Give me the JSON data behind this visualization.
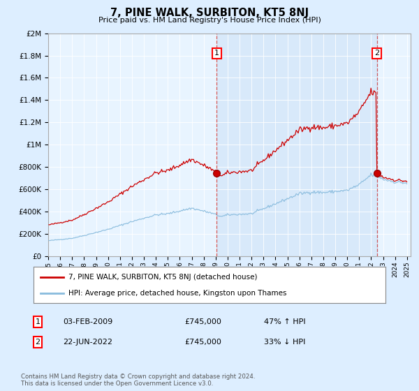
{
  "title": "7, PINE WALK, SURBITON, KT5 8NJ",
  "subtitle": "Price paid vs. HM Land Registry's House Price Index (HPI)",
  "legend_line1": "7, PINE WALK, SURBITON, KT5 8NJ (detached house)",
  "legend_line2": "HPI: Average price, detached house, Kingston upon Thames",
  "sale1_price": 745000,
  "sale2_price": 745000,
  "sale1_year": 2009.083,
  "sale2_year": 2022.47,
  "hpi_line_color": "#88bbdd",
  "price_line_color": "#cc0000",
  "dashed_line_color": "#dd4444",
  "background_color": "#ddeeff",
  "plot_bg_color": "#e8f4ff",
  "shade_color": "#c8dff5",
  "footer": "Contains HM Land Registry data © Crown copyright and database right 2024.\nThis data is licensed under the Open Government Licence v3.0.",
  "ylim_max": 2000000,
  "ytick_values": [
    0,
    200000,
    400000,
    600000,
    800000,
    1000000,
    1200000,
    1400000,
    1600000,
    1800000,
    2000000
  ],
  "ytick_labels": [
    "£0",
    "£200K",
    "£400K",
    "£600K",
    "£800K",
    "£1M",
    "£1.2M",
    "£1.4M",
    "£1.6M",
    "£1.8M",
    "£2M"
  ],
  "xmin": 1995.0,
  "xmax": 2025.3,
  "xtick_years": [
    1995,
    1996,
    1997,
    1998,
    1999,
    2000,
    2001,
    2002,
    2003,
    2004,
    2005,
    2006,
    2007,
    2008,
    2009,
    2010,
    2011,
    2012,
    2013,
    2014,
    2015,
    2016,
    2017,
    2018,
    2019,
    2020,
    2021,
    2022,
    2023,
    2024,
    2025
  ]
}
